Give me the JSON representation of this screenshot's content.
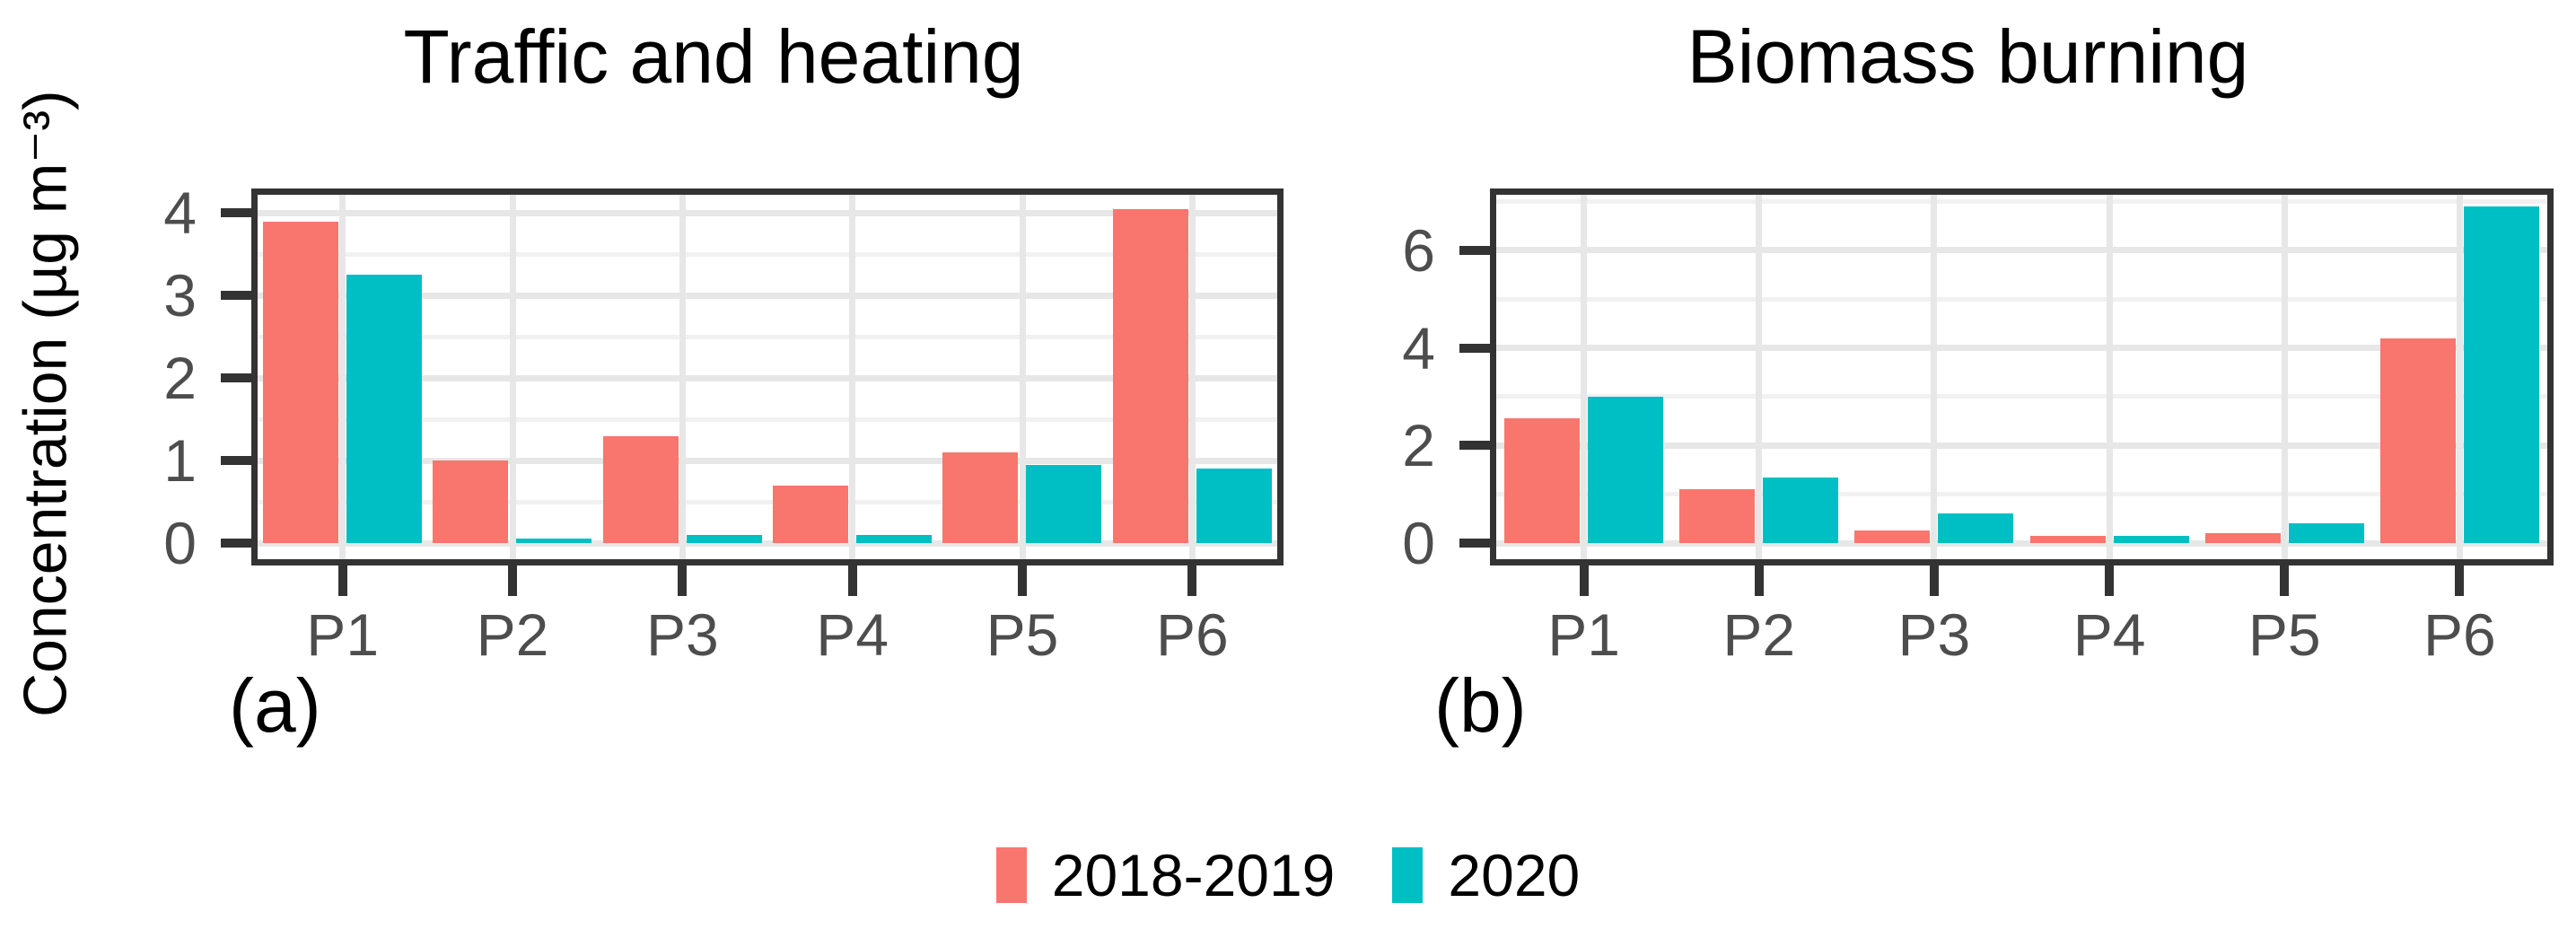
{
  "figure": {
    "ylabel": "Concentration (µg m⁻³)"
  },
  "legend": {
    "entries": [
      {
        "label": "2018-2019",
        "color": "#F8766D"
      },
      {
        "label": "2020",
        "color": "#00BFC4"
      }
    ]
  },
  "colors": {
    "series_2018_2019": "#F8766D",
    "series_2020": "#00BFC4",
    "panel_border": "#333333",
    "grid_major": "#e7e7e7",
    "grid_minor": "#f1f1f1",
    "tick_text": "#4d4d4d"
  },
  "chart_data": [
    {
      "type": "bar",
      "title": "Traffic and heating",
      "panel_label": "(a)",
      "categories": [
        "P1",
        "P2",
        "P3",
        "P4",
        "P5",
        "P6"
      ],
      "series": [
        {
          "name": "2018-2019",
          "color": "#F8766D",
          "values": [
            3.9,
            1.0,
            1.3,
            0.7,
            1.1,
            4.05
          ]
        },
        {
          "name": "2020",
          "color": "#00BFC4",
          "values": [
            3.25,
            0.05,
            0.1,
            0.1,
            0.95,
            0.9
          ]
        }
      ],
      "ylabel": "Concentration (µg m⁻³)",
      "xlabel": "",
      "yticks": [
        0,
        1,
        2,
        3,
        4
      ],
      "minor_step": 0.5,
      "ylim": [
        0,
        4.2
      ],
      "grid": true,
      "legend_position": "bottom"
    },
    {
      "type": "bar",
      "title": "Biomass burning",
      "panel_label": "(b)",
      "categories": [
        "P1",
        "P2",
        "P3",
        "P4",
        "P5",
        "P6"
      ],
      "series": [
        {
          "name": "2018-2019",
          "color": "#F8766D",
          "values": [
            2.55,
            1.1,
            0.25,
            0.15,
            0.2,
            4.2
          ]
        },
        {
          "name": "2020",
          "color": "#00BFC4",
          "values": [
            3.0,
            1.35,
            0.6,
            0.15,
            0.4,
            6.9
          ]
        }
      ],
      "ylabel": "Concentration (µg m⁻³)",
      "xlabel": "",
      "yticks": [
        0,
        2,
        4,
        6
      ],
      "minor_step": 1,
      "ylim": [
        0,
        7.1
      ],
      "grid": true,
      "legend_position": "bottom"
    }
  ]
}
